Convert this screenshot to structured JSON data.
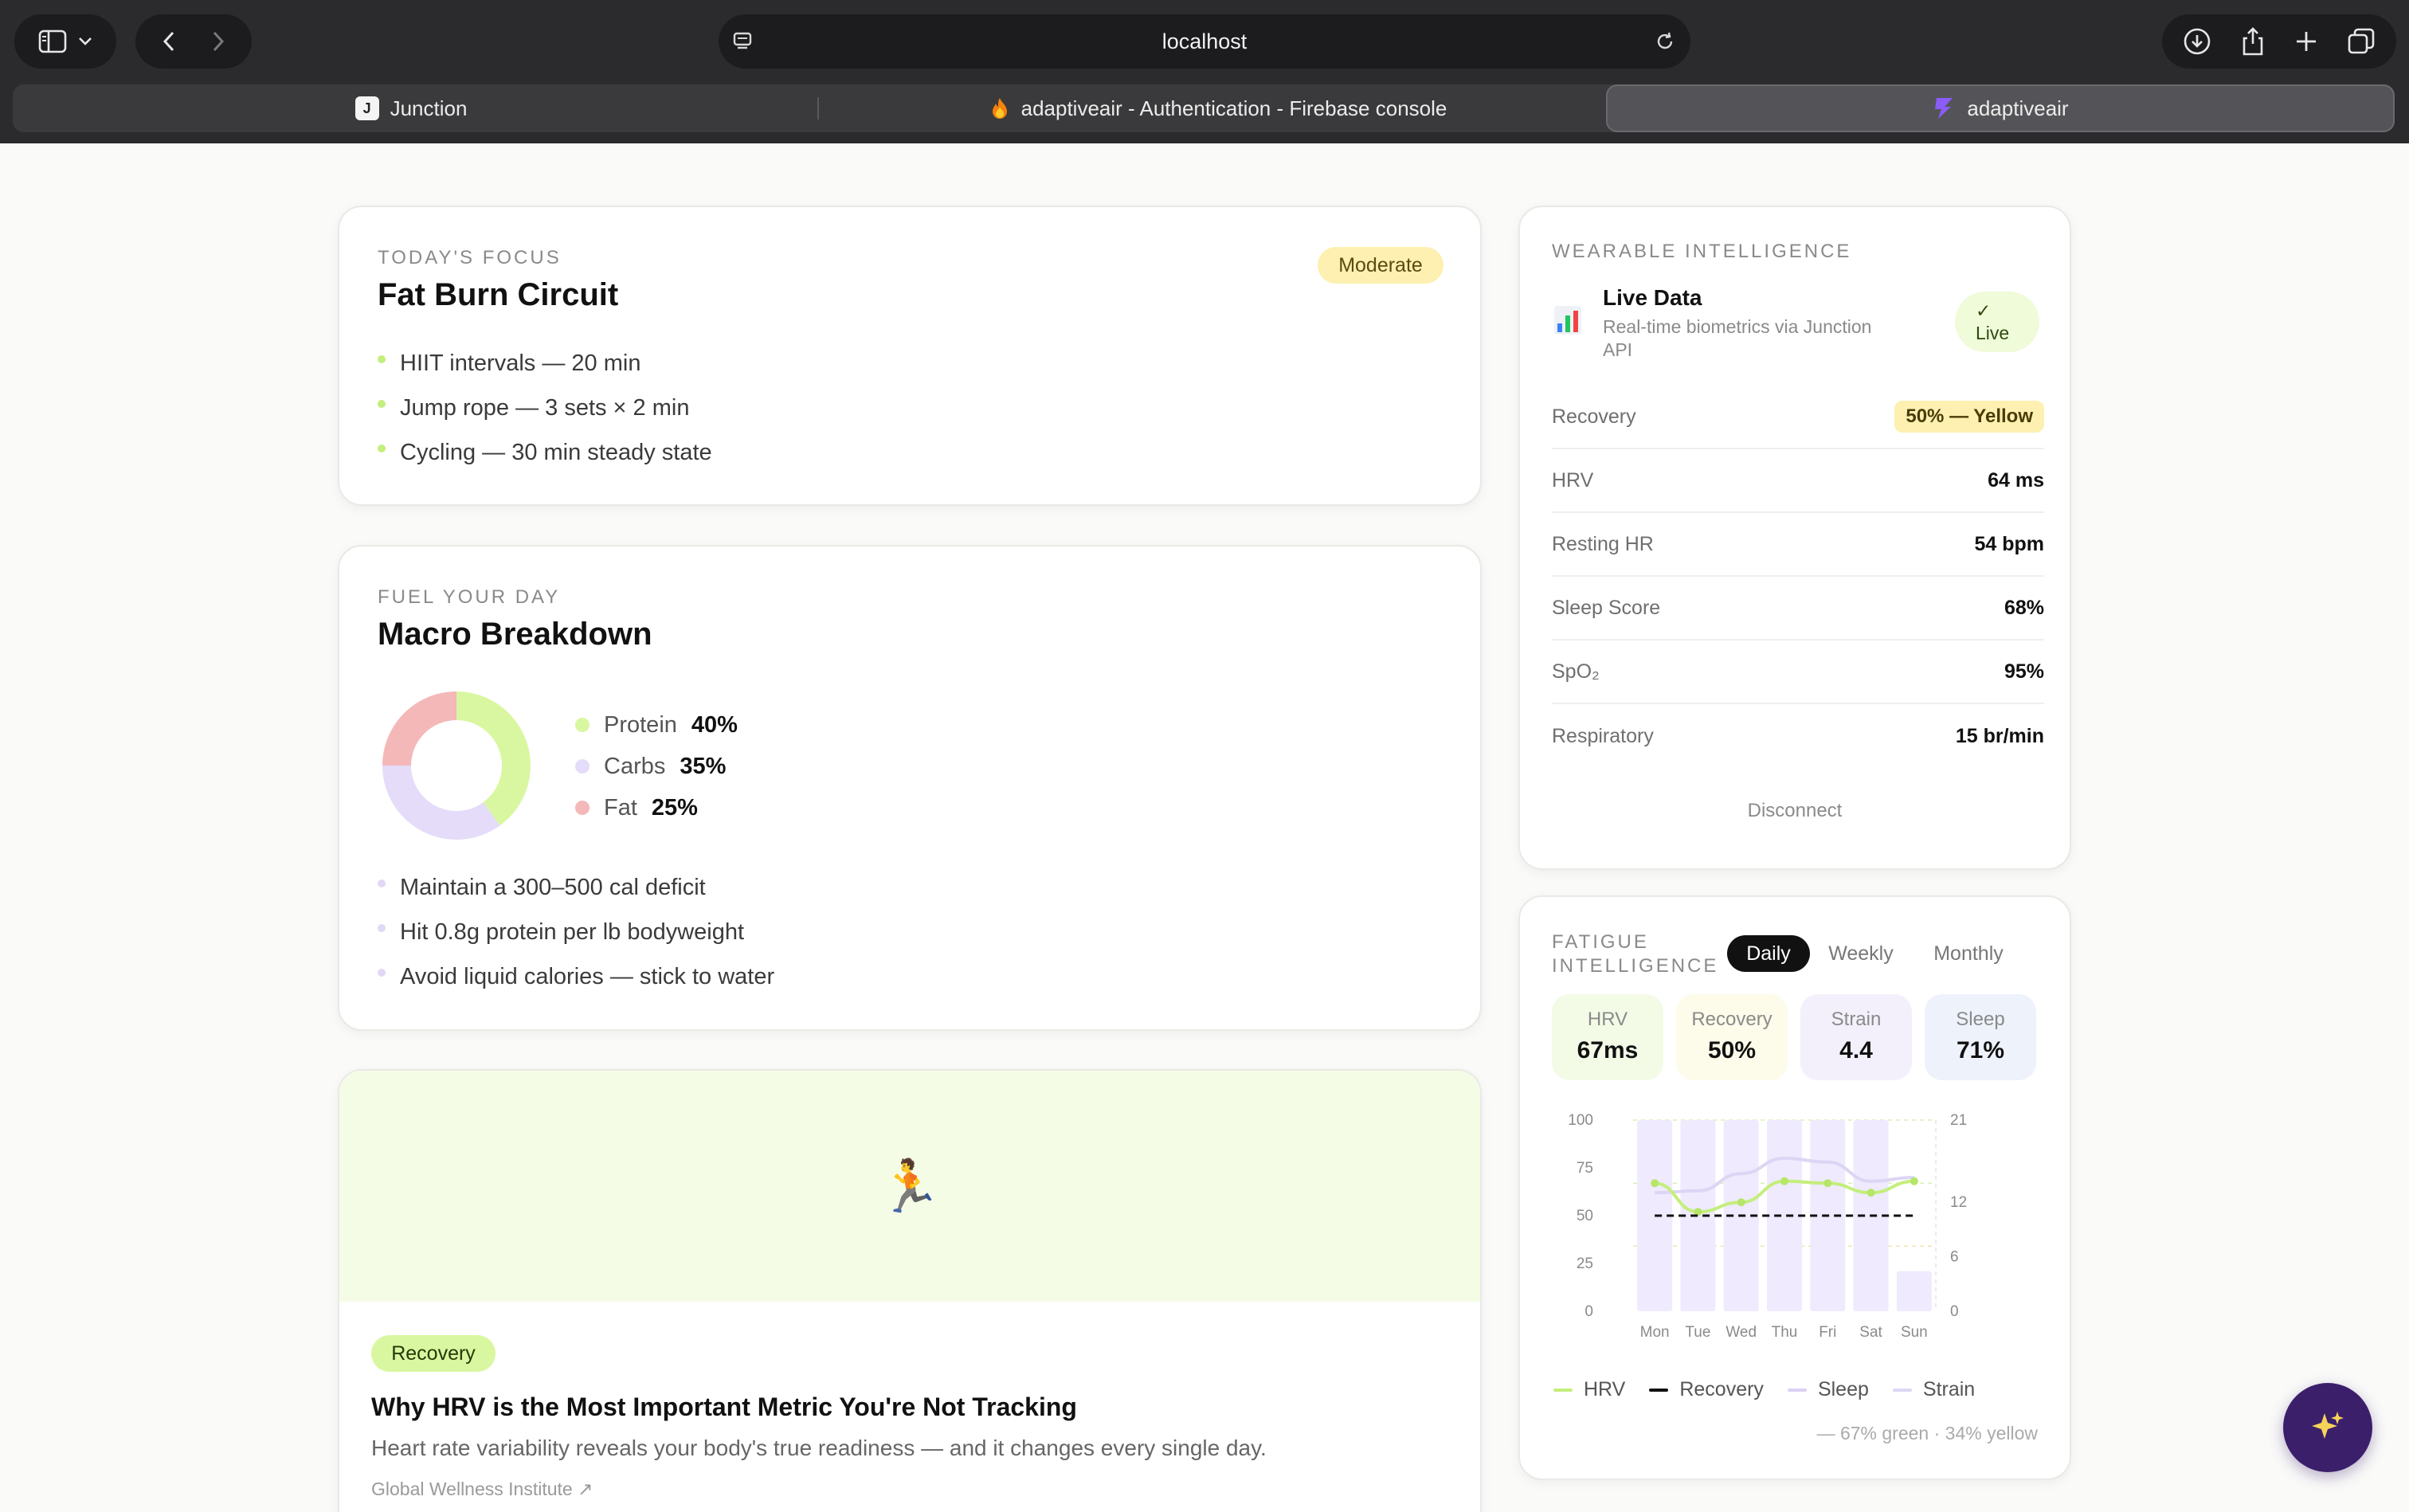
{
  "browser": {
    "address": "localhost",
    "tabs": [
      {
        "label": "Junction",
        "favicon": "J"
      },
      {
        "label": "adaptiveair - Authentication - Firebase console"
      },
      {
        "label": "adaptiveair"
      }
    ]
  },
  "focus": {
    "eyebrow": "TODAY'S FOCUS",
    "title": "Fat Burn Circuit",
    "badge": "Moderate",
    "items": [
      "HIIT intervals — 20 min",
      "Jump rope — 3 sets × 2 min",
      "Cycling — 30 min steady state"
    ]
  },
  "macro": {
    "eyebrow": "FUEL YOUR DAY",
    "title": "Macro Breakdown",
    "legend": [
      {
        "name": "Protein",
        "value": "40%",
        "pct": 40,
        "color": "#d9f7a0"
      },
      {
        "name": "Carbs",
        "value": "35%",
        "pct": 35,
        "color": "#e4dcf8"
      },
      {
        "name": "Fat",
        "value": "25%",
        "pct": 25,
        "color": "#f4b8b8"
      }
    ],
    "tips": [
      "Maintain a 300–500 cal deficit",
      "Hit 0.8g protein per lb bodyweight",
      "Avoid liquid calories — stick to water"
    ]
  },
  "article": {
    "emoji": "🏃",
    "tag": "Recovery",
    "title": "Why HRV is the Most Important Metric You're Not Tracking",
    "desc": "Heart rate variability reveals your body's true readiness — and it changes every single day.",
    "source": "Global Wellness Institute ↗"
  },
  "wearable": {
    "eyebrow": "WEARABLE INTELLIGENCE",
    "icon": "bar-chart-icon",
    "title": "Live Data",
    "subtitle_line1": "Real-time biometrics via Junction",
    "subtitle_line2": "API",
    "live_check": "✓",
    "live_label": "Live",
    "recovery_label": "Recovery",
    "recovery_value": "50% — Yellow",
    "metrics": [
      {
        "label": "HRV",
        "value": "64 ms"
      },
      {
        "label": "Resting HR",
        "value": "54 bpm"
      },
      {
        "label": "Sleep Score",
        "value": "68%"
      },
      {
        "label": "SpO₂",
        "value": "95%"
      },
      {
        "label": "Respiratory",
        "value": "15 br/min"
      }
    ],
    "disconnect": "Disconnect"
  },
  "fatigue": {
    "eyebrow_line1": "FATIGUE",
    "eyebrow_line2": "INTELLIGENCE",
    "tabs": [
      "Daily",
      "Weekly",
      "Monthly"
    ],
    "stats": [
      {
        "label": "HRV",
        "value": "67ms",
        "bg": "#f3fbe6"
      },
      {
        "label": "Recovery",
        "value": "50%",
        "bg": "#fdfbe9"
      },
      {
        "label": "Strain",
        "value": "4.4",
        "bg": "#f3f0fb"
      },
      {
        "label": "Sleep",
        "value": "71%",
        "bg": "#eef2fb"
      }
    ],
    "legend": [
      {
        "name": "HRV",
        "color": "#c4ee7c"
      },
      {
        "name": "Recovery",
        "color": "#111111"
      },
      {
        "name": "Sleep",
        "color": "#d9d1f2"
      },
      {
        "name": "Strain",
        "color": "#ded6f6"
      }
    ],
    "footnote": "— 67% green · 34% yellow"
  },
  "chart_data": {
    "type": "bar",
    "categories": [
      "Mon",
      "Tue",
      "Wed",
      "Thu",
      "Fri",
      "Sat",
      "Sun"
    ],
    "ylim": [
      0,
      100
    ],
    "y_ticks": [
      "100",
      "75",
      "50",
      "25",
      "0"
    ],
    "y2lim": [
      0,
      21
    ],
    "y2_ticks": [
      "21",
      "12",
      "6",
      "0"
    ],
    "series": [
      {
        "name": "Sleep",
        "type": "bar",
        "values": [
          100,
          100,
          100,
          100,
          100,
          100,
          21
        ]
      },
      {
        "name": "HRV",
        "type": "line",
        "values": [
          67,
          52,
          57,
          68,
          67,
          62,
          68
        ]
      },
      {
        "name": "Recovery",
        "type": "line",
        "values": [
          50,
          50,
          50,
          50,
          50,
          50,
          50
        ]
      },
      {
        "name": "Strain",
        "type": "line",
        "values": [
          62,
          63,
          72,
          80,
          78,
          68,
          70
        ]
      }
    ],
    "grid": false,
    "legend_position": "bottom"
  },
  "fab": {
    "icon": "sparkles-icon"
  }
}
